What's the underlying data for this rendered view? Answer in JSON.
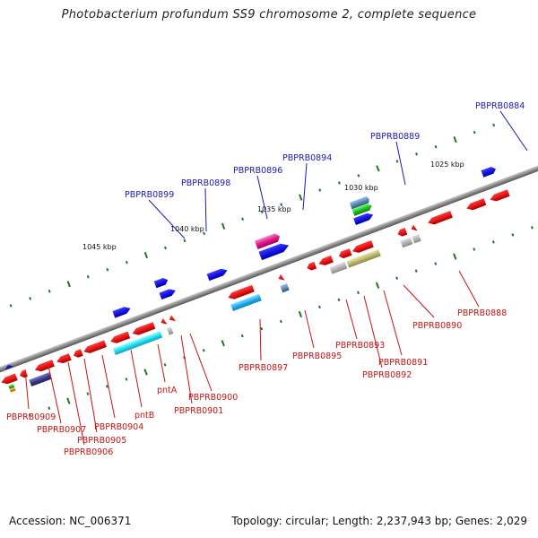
{
  "title": "Photobacterium profundum SS9 chromosome 2, complete sequence",
  "footer": {
    "accession": "Accession: NC_006371",
    "summary": "Topology: circular; Length: 2,237,943 bp; Genes: 2,029"
  },
  "kbp_marks": [
    "1025 kbp",
    "1030 kbp",
    "1035 kbp",
    "1040 kbp",
    "1045 kbp"
  ],
  "upper_labels": [
    "PBPRB0884",
    "PBPRB0889",
    "PBPRB0894",
    "PBPRB0896",
    "PBPRB0898",
    "PBPRB0899"
  ],
  "lower_labels": [
    "PBPRB0888",
    "PBPRB0890",
    "PBPRB0891",
    "PBPRB0892",
    "PBPRB0893",
    "PBPRB0895",
    "PBPRB0897",
    "PBPRB0900",
    "PBPRB0901",
    "pntA",
    "pntB",
    "PBPRB0904",
    "PBPRB0905",
    "PBPRB0906",
    "PBPRB0907",
    "PBPRB0909"
  ],
  "colors": {
    "forward_gene": "#1a1ae0",
    "reverse_gene": "#e01414",
    "forward_label": "#1a1ab4",
    "reverse_label": "#c81414",
    "backbone": "#808080",
    "tick": "#1e7a1e"
  }
}
